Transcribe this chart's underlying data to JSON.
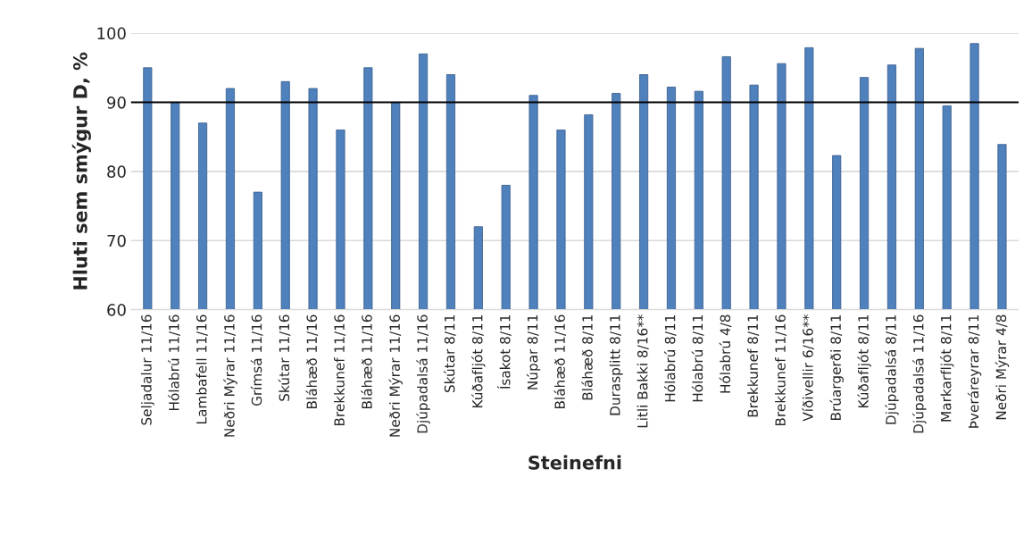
{
  "chart_data": {
    "type": "bar",
    "xlabel": "Steinefni",
    "ylabel": "Hluti sem smýgur D, %",
    "categories": [
      "Seljadalur 11/16",
      "Hólabrú 11/16",
      "Lambafell 11/16",
      "Neðri Mýrar 11/16",
      "Grímsá 11/16",
      "Skútar 11/16",
      "Bláhæð 11/16",
      "Brekkunef 11/16",
      "Bláhæð 11/16",
      "Neðri Mýrar 11/16",
      "Djúpadalsá 11/16",
      "Skútar 8/11",
      "Kúðafljót 8/11",
      "Ísakot 8/11",
      "Núpar 8/11",
      "Bláhæð 11/16",
      "Bláhæð 8/11",
      "Durasplitt 8/11",
      "Litli Bakki 8/16**",
      "Hólabrú 8/11",
      "Hólabrú 8/11",
      "Hólabrú 4/8",
      "Brekkunef 8/11",
      "Brekkunef 11/16",
      "Víðivellir 6/16**",
      "Brúargerði 8/11",
      "Kúðafljót 8/11",
      "Djúpadalsá 8/11",
      "Djúpadalsá 11/16",
      "Markarfljót 8/11",
      "Þveráreyrar 8/11",
      "Neðri Mýrar 4/8"
    ],
    "values": [
      95,
      90,
      87,
      92,
      77,
      93,
      92,
      86,
      95,
      90,
      97,
      94,
      72,
      78,
      91,
      86,
      88.2,
      91.3,
      94,
      92.2,
      91.6,
      96.6,
      92.5,
      95.6,
      97.9,
      82.3,
      93.6,
      95.4,
      97.8,
      89.5,
      98.5,
      83.9
    ],
    "color": "#4f81bd",
    "ylim": [
      60,
      100
    ],
    "yticks": [
      60,
      70,
      80,
      90,
      100
    ],
    "grid": "y",
    "ref_lines": [
      {
        "axis": "y",
        "value": 90,
        "color": "#000000"
      }
    ]
  }
}
